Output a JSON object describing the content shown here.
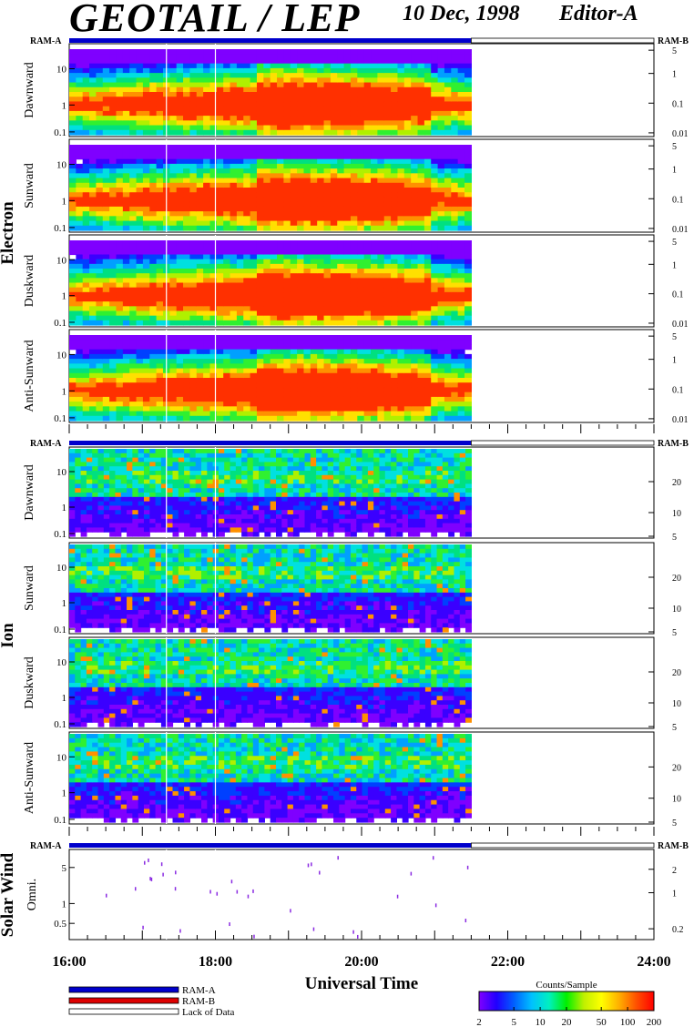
{
  "header": {
    "title": "GEOTAIL / LEP",
    "date": "10 Dec, 1998",
    "editor": "Editor-A"
  },
  "ram_labels": {
    "left": "RAM-A",
    "right": "RAM-B"
  },
  "groups": [
    {
      "name": "Electron"
    },
    {
      "name": "Ion"
    },
    {
      "name": "Solar Wind"
    }
  ],
  "chart_data": {
    "type": "heatmap",
    "xlabel": "Universal Time",
    "x_ticks": [
      "16:00",
      "18:00",
      "20:00",
      "22:00",
      "24:00"
    ],
    "x_range_hours": [
      16,
      24
    ],
    "data_end_hour": 21.5,
    "panels": [
      {
        "group": "Electron",
        "label": "Dawnward",
        "left_ticks": [
          "0.1",
          "1",
          "10"
        ],
        "right_ticks": [
          "5",
          "1",
          "0.1",
          "0.01"
        ]
      },
      {
        "group": "Electron",
        "label": "Sunward",
        "left_ticks": [
          "0.1",
          "1",
          "10"
        ],
        "right_ticks": [
          "5",
          "1",
          "0.1",
          "0.01"
        ]
      },
      {
        "group": "Electron",
        "label": "Duskward",
        "left_ticks": [
          "0.1",
          "1",
          "10"
        ],
        "right_ticks": [
          "5",
          "1",
          "0.1",
          "0.01"
        ]
      },
      {
        "group": "Electron",
        "label": "Anti-Sunward",
        "left_ticks": [
          "0.1",
          "1",
          "10"
        ],
        "right_ticks": [
          "5",
          "1",
          "0.1",
          "0.01"
        ]
      },
      {
        "group": "Ion",
        "label": "Dawnward",
        "left_ticks": [
          "0.1",
          "1",
          "10"
        ],
        "right_ticks": [
          "20",
          "10",
          "5"
        ]
      },
      {
        "group": "Ion",
        "label": "Sunward",
        "left_ticks": [
          "0.1",
          "1",
          "10"
        ],
        "right_ticks": [
          "20",
          "10",
          "5"
        ]
      },
      {
        "group": "Ion",
        "label": "Duskward",
        "left_ticks": [
          "0.1",
          "1",
          "10"
        ],
        "right_ticks": [
          "20",
          "10",
          "5"
        ]
      },
      {
        "group": "Ion",
        "label": "Anti-Sunward",
        "left_ticks": [
          "0.1",
          "1",
          "10"
        ],
        "right_ticks": [
          "20",
          "10",
          "5"
        ]
      },
      {
        "group": "Solar Wind",
        "label": "Omni.",
        "left_ticks": [
          "0.5",
          "1",
          "5"
        ],
        "right_ticks": [
          "2",
          "1",
          "0.2"
        ]
      }
    ],
    "legend": [
      {
        "label": "RAM-A",
        "color": "#0000cc"
      },
      {
        "label": "RAM-B",
        "color": "#dd0000"
      },
      {
        "label": "Lack of Data",
        "color": "#ffffff"
      }
    ],
    "colorbar": {
      "title": "Counts/Sample",
      "ticks": [
        "2",
        "5",
        "10",
        "20",
        "50",
        "100",
        "200"
      ],
      "range": [
        2,
        200
      ]
    },
    "colors": {
      "ram_a": "#0000cc",
      "ram_b": "#dd0000"
    }
  }
}
